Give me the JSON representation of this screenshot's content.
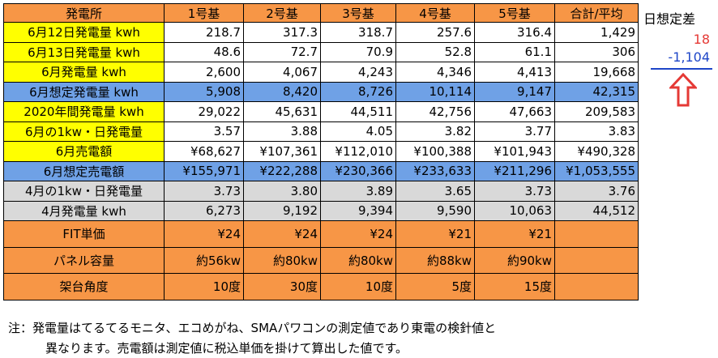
{
  "table": {
    "headers": [
      "発電所",
      "1号基",
      "2号基",
      "3号基",
      "4号基",
      "5号基",
      "合計/平均"
    ],
    "rows": [
      {
        "style": "white",
        "label": "6月12日発電量 kwh",
        "values": [
          "218.7",
          "317.3",
          "318.7",
          "257.6",
          "316.4",
          "1,429"
        ]
      },
      {
        "style": "white",
        "label": "6月13日発電量 kwh",
        "values": [
          "48.6",
          "72.7",
          "70.9",
          "52.8",
          "61.1",
          "306"
        ]
      },
      {
        "style": "white",
        "label": "6月発電量 kwh",
        "values": [
          "2,600",
          "4,067",
          "4,243",
          "4,346",
          "4,413",
          "19,668"
        ]
      },
      {
        "style": "blue",
        "label": "6月想定発電量 kwh",
        "values": [
          "5,908",
          "8,420",
          "8,726",
          "10,114",
          "9,147",
          "42,315"
        ]
      },
      {
        "style": "white",
        "label": "2020年間発電量 kwh",
        "values": [
          "29,022",
          "45,631",
          "44,511",
          "42,756",
          "47,663",
          "209,583"
        ]
      },
      {
        "style": "white",
        "label": "6月の1kw・日発電量",
        "values": [
          "3.57",
          "3.88",
          "4.05",
          "3.82",
          "3.77",
          "3.83"
        ]
      },
      {
        "style": "white",
        "label": "6月売電額",
        "values": [
          "¥68,627",
          "¥107,361",
          "¥112,010",
          "¥100,388",
          "¥101,943",
          "¥490,328"
        ]
      },
      {
        "style": "blue",
        "label": "6月想定売電額",
        "values": [
          "¥155,971",
          "¥222,288",
          "¥230,366",
          "¥233,633",
          "¥211,296",
          "¥1,053,555"
        ]
      },
      {
        "style": "gray",
        "label": "4月の1kw・日発電量",
        "values": [
          "3.73",
          "3.80",
          "3.89",
          "3.65",
          "3.73",
          "3.76"
        ]
      },
      {
        "style": "gray",
        "label": "4月発電量 kwh",
        "values": [
          "6,273",
          "9,192",
          "9,394",
          "9,590",
          "10,063",
          "44,512"
        ]
      },
      {
        "style": "orange",
        "label": "FIT単価",
        "values": [
          "¥24",
          "¥24",
          "¥24",
          "¥21",
          "¥21",
          ""
        ]
      },
      {
        "style": "orange",
        "label": "パネル容量",
        "values": [
          "約56kw",
          "約80kw",
          "約80kw",
          "約88kw",
          "約90kw",
          ""
        ]
      },
      {
        "style": "orange",
        "label": "架台角度",
        "values": [
          "10度",
          "30度",
          "10度",
          "5度",
          "15度",
          ""
        ]
      }
    ]
  },
  "side": {
    "title": "日想定差",
    "positive": "18",
    "negative": "-1,104",
    "colors": {
      "positive": "#E53935",
      "negative": "#1E46C8",
      "arrow": "#E53935"
    },
    "arrow_icon": "up-arrow-outline-icon"
  },
  "note": {
    "line1": "注：発電量はてるてるモニタ、エコめがね、SMAパワコンの測定値であり東電の検針値と",
    "line2": "異なります。売電額は測定値に税込単価を掛けて算出した値です。"
  },
  "colors": {
    "header": "#F79646",
    "label_yellow": "#FFFF00",
    "blue_row": "#6FA1E6",
    "gray_row": "#D9D9D9",
    "orange_row": "#F79646"
  }
}
